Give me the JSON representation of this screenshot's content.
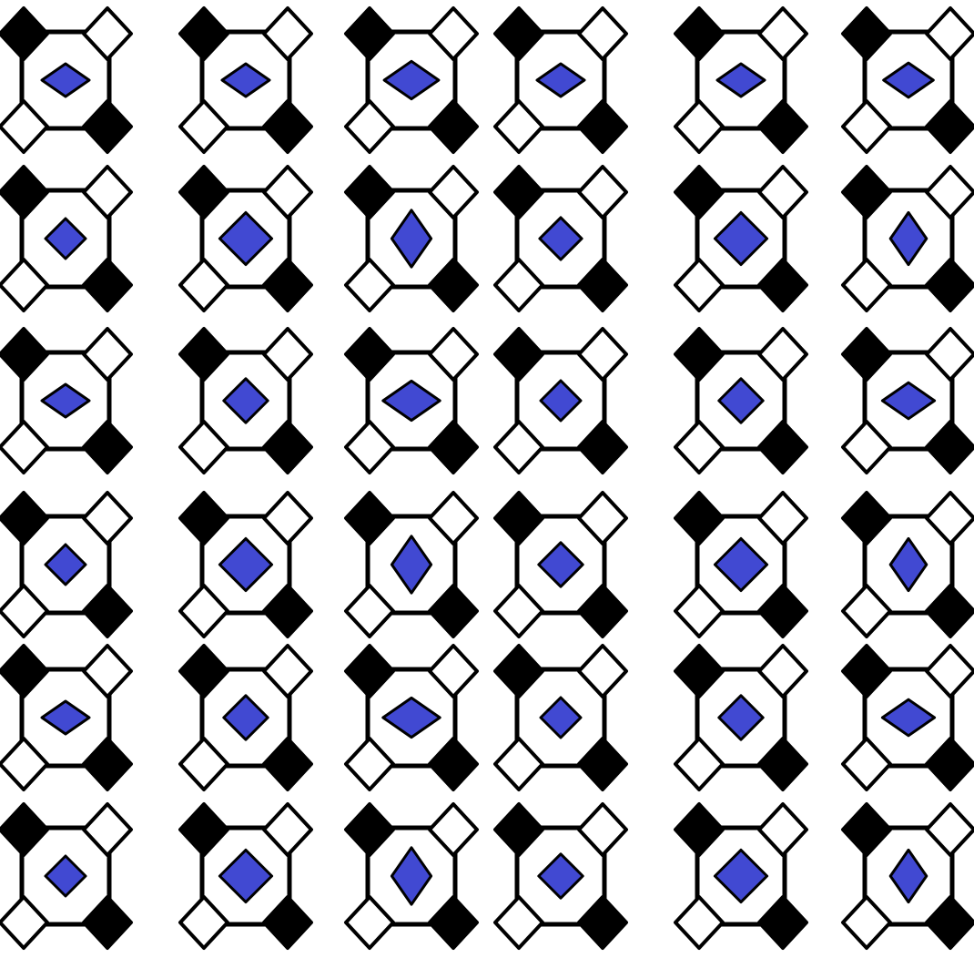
{
  "pattern": {
    "rows": 6,
    "columns": 6,
    "motif": "octagon-frame-with-blue-center-diamond",
    "corner_fill_order": [
      "black",
      "white",
      "white",
      "black"
    ],
    "center_scale": [
      [
        1.0,
        1.0,
        1.15,
        1.0,
        1.0,
        1.05
      ],
      [
        1.0,
        1.3,
        1.2,
        1.05,
        1.3,
        1.1
      ],
      [
        1.0,
        1.1,
        1.2,
        1.0,
        1.1,
        1.1
      ],
      [
        1.0,
        1.3,
        1.2,
        1.1,
        1.3,
        1.1
      ],
      [
        1.0,
        1.1,
        1.2,
        1.0,
        1.1,
        1.1
      ],
      [
        1.0,
        1.3,
        1.2,
        1.1,
        1.3,
        1.1
      ]
    ],
    "center_shape": [
      [
        "wide",
        "wide",
        "wide",
        "wide",
        "wide",
        "wide"
      ],
      [
        "square",
        "square",
        "tall",
        "square",
        "square",
        "tall"
      ],
      [
        "wide",
        "square",
        "wide",
        "square",
        "square",
        "wide"
      ],
      [
        "square",
        "square",
        "tall",
        "square",
        "square",
        "tall"
      ],
      [
        "wide",
        "square",
        "wide",
        "square",
        "square",
        "wide"
      ],
      [
        "square",
        "square",
        "tall",
        "square",
        "square",
        "tall"
      ]
    ]
  },
  "colors": {
    "background": "#ffffff",
    "stroke": "#000000",
    "corner_dark": "#000000",
    "corner_light": "#ffffff",
    "center": "#4149d2"
  }
}
